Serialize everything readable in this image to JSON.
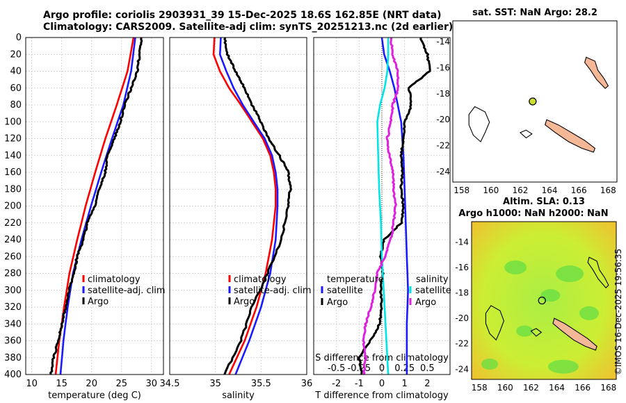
{
  "title": {
    "line1": "Argo profile: coriolis 2903931_39 15-Dec-2025 18.6S 162.85E (NRT data)",
    "line2": "Climatology: CARS2009. Satellite-adj clim: synTS_20251213.nc (2d earlier)"
  },
  "colors": {
    "red": "#ff0000",
    "blue": "#1a1aff",
    "black": "#000000",
    "cyan": "#00e5e5",
    "magenta": "#e020e0",
    "land": "#f5b896",
    "mapgreen": "#66dd44"
  },
  "chart_data": [
    {
      "type": "line",
      "title": "",
      "xlabel": "temperature (deg C)",
      "ylabel": "",
      "xlim": [
        9,
        32
      ],
      "ylim": [
        400,
        0
      ],
      "xticks": [
        10,
        15,
        20,
        25,
        30
      ],
      "yticks": [
        0,
        20,
        40,
        60,
        80,
        100,
        120,
        140,
        160,
        180,
        200,
        220,
        240,
        260,
        280,
        300,
        320,
        340,
        360,
        380,
        400
      ],
      "legend": [
        "climatology",
        "satellite-adj. clim",
        "Argo"
      ],
      "series": [
        {
          "name": "climatology",
          "color": "red",
          "depth": [
            0,
            40,
            80,
            120,
            160,
            200,
            240,
            280,
            320,
            360,
            400
          ],
          "values": [
            27.0,
            26.0,
            24.2,
            22.3,
            20.6,
            19.0,
            17.6,
            16.3,
            15.4,
            14.6,
            14.0
          ]
        },
        {
          "name": "satellite-adj. clim",
          "color": "blue",
          "depth": [
            0,
            40,
            80,
            120,
            160,
            200,
            240,
            280,
            320,
            360,
            400
          ],
          "values": [
            27.3,
            26.6,
            25.3,
            23.4,
            21.6,
            19.9,
            18.3,
            16.9,
            16.0,
            15.3,
            14.8
          ]
        },
        {
          "name": "Argo",
          "color": "black",
          "depth": [
            0,
            20,
            40,
            60,
            80,
            100,
            120,
            140,
            160,
            180,
            200,
            220,
            240,
            260,
            280,
            300,
            320,
            340,
            360,
            380,
            400
          ],
          "values": [
            28.3,
            28.0,
            27.6,
            26.6,
            25.5,
            24.8,
            23.8,
            22.6,
            22.3,
            21.2,
            20.6,
            19.3,
            18.6,
            17.6,
            17.0,
            16.2,
            15.7,
            15.0,
            14.5,
            13.6,
            13.2
          ]
        }
      ]
    },
    {
      "type": "line",
      "title": "",
      "xlabel": "salinity",
      "ylabel": "",
      "xlim": [
        34.5,
        36.0
      ],
      "ylim": [
        400,
        0
      ],
      "xticks": [
        34.5,
        35,
        35.5,
        36
      ],
      "xtick_labels": [
        "34.5",
        "35",
        "35.5",
        "36"
      ],
      "legend": [
        "climatology",
        "satellite-adj. clim",
        "Argo"
      ],
      "series": [
        {
          "name": "climatology",
          "color": "red",
          "depth": [
            0,
            20,
            40,
            60,
            80,
            100,
            120,
            140,
            160,
            180,
            200,
            240,
            280,
            320,
            360,
            400
          ],
          "values": [
            34.99,
            34.98,
            35.05,
            35.15,
            35.28,
            35.4,
            35.52,
            35.6,
            35.64,
            35.66,
            35.66,
            35.62,
            35.55,
            35.45,
            35.32,
            35.15
          ]
        },
        {
          "name": "satellite-adj. clim",
          "color": "blue",
          "depth": [
            0,
            20,
            40,
            60,
            80,
            100,
            120,
            140,
            160,
            180,
            200,
            240,
            280,
            320,
            360,
            400
          ],
          "values": [
            35.06,
            35.05,
            35.12,
            35.2,
            35.3,
            35.42,
            35.54,
            35.62,
            35.66,
            35.68,
            35.68,
            35.66,
            35.6,
            35.5,
            35.37,
            35.22
          ]
        },
        {
          "name": "Argo",
          "color": "black",
          "depth": [
            0,
            20,
            40,
            60,
            80,
            100,
            120,
            140,
            160,
            180,
            200,
            240,
            280,
            320,
            360,
            400
          ],
          "values": [
            35.1,
            35.13,
            35.22,
            35.32,
            35.4,
            35.5,
            35.58,
            35.7,
            35.8,
            35.82,
            35.8,
            35.72,
            35.57,
            35.4,
            35.28,
            35.1
          ]
        }
      ]
    },
    {
      "type": "line",
      "title": "",
      "xlabel": "T difference from climatology",
      "xlabel2": "S difference from climatology",
      "ylabel": "",
      "xlim": [
        -3,
        3
      ],
      "xlim2": [
        -0.75,
        0.75
      ],
      "ylim": [
        400,
        0
      ],
      "xticks": [
        -2,
        -1,
        0,
        1,
        2
      ],
      "xticks2": [
        -0.5,
        -0.25,
        0,
        0.25,
        0.5
      ],
      "xtick_labels2": [
        "-0.5",
        "-0.25",
        "0",
        "0.25",
        "0.5"
      ],
      "legend_temperature_title": "temperature",
      "legend_salinity_title": "salinity",
      "legend_temperature": [
        "satellite",
        "Argo"
      ],
      "legend_salinity": [
        "satellite",
        "Argo"
      ],
      "series": [
        {
          "name": "T satellite",
          "color": "blue",
          "axis": "T",
          "depth": [
            0,
            20,
            40,
            60,
            80,
            100,
            140,
            180,
            220,
            260,
            300,
            340,
            380,
            400
          ],
          "values": [
            0.0,
            0.1,
            0.35,
            0.55,
            0.7,
            0.85,
            0.95,
            1.0,
            1.05,
            1.1,
            1.15,
            1.1,
            1.1,
            1.1
          ]
        },
        {
          "name": "T Argo",
          "color": "black",
          "axis": "T",
          "depth": [
            0,
            20,
            40,
            60,
            80,
            100,
            120,
            140,
            160,
            180,
            200,
            220,
            240,
            260,
            280,
            300,
            320,
            340,
            360,
            380,
            400
          ],
          "values": [
            1.7,
            2.0,
            2.1,
            1.2,
            1.3,
            1.0,
            0.95,
            0.85,
            0.9,
            0.85,
            0.95,
            0.85,
            0.1,
            -0.05,
            0.05,
            -0.05,
            0.0,
            -0.1,
            -0.5,
            -1.0,
            -0.9
          ]
        },
        {
          "name": "S satellite",
          "color": "cyan",
          "axis": "S",
          "depth": [
            0,
            20,
            40,
            60,
            80,
            100,
            140,
            180,
            220,
            260,
            300,
            340,
            380,
            400
          ],
          "values": [
            0.07,
            0.07,
            0.06,
            0.03,
            -0.02,
            -0.05,
            -0.04,
            -0.03,
            -0.01,
            0.0,
            0.02,
            0.04,
            0.06,
            0.07
          ]
        },
        {
          "name": "S Argo",
          "color": "magenta",
          "axis": "S",
          "depth": [
            0,
            20,
            40,
            60,
            80,
            100,
            120,
            140,
            160,
            180,
            200,
            220,
            240,
            260,
            280,
            300,
            320,
            340,
            360,
            380,
            400
          ],
          "values": [
            0.1,
            0.12,
            0.17,
            0.18,
            0.12,
            0.1,
            0.06,
            0.08,
            0.12,
            0.13,
            0.15,
            0.13,
            0.1,
            0.03,
            -0.05,
            -0.08,
            -0.12,
            -0.18,
            -0.2,
            -0.18,
            -0.2
          ]
        }
      ]
    }
  ],
  "maps": [
    {
      "title": "sat. SST: NaN Argo: 28.2",
      "xticks": [
        158,
        160,
        162,
        164,
        166,
        168
      ],
      "yticks": [
        -14,
        -16,
        -18,
        -20,
        -22,
        -24
      ],
      "marker": {
        "lon": 162.85,
        "lat": -18.6
      }
    },
    {
      "title_line1": "Altim. SLA: 0.13",
      "title_line2": "Argo h1000: NaN h2000: NaN",
      "xticks": [
        158,
        160,
        162,
        164,
        166,
        168
      ],
      "yticks": [
        -14,
        -16,
        -18,
        -20,
        -22,
        -24
      ],
      "marker": {
        "lon": 162.85,
        "lat": -18.6
      }
    }
  ],
  "watermark": "©IMOS 16-Dec-2025 19:56:35"
}
